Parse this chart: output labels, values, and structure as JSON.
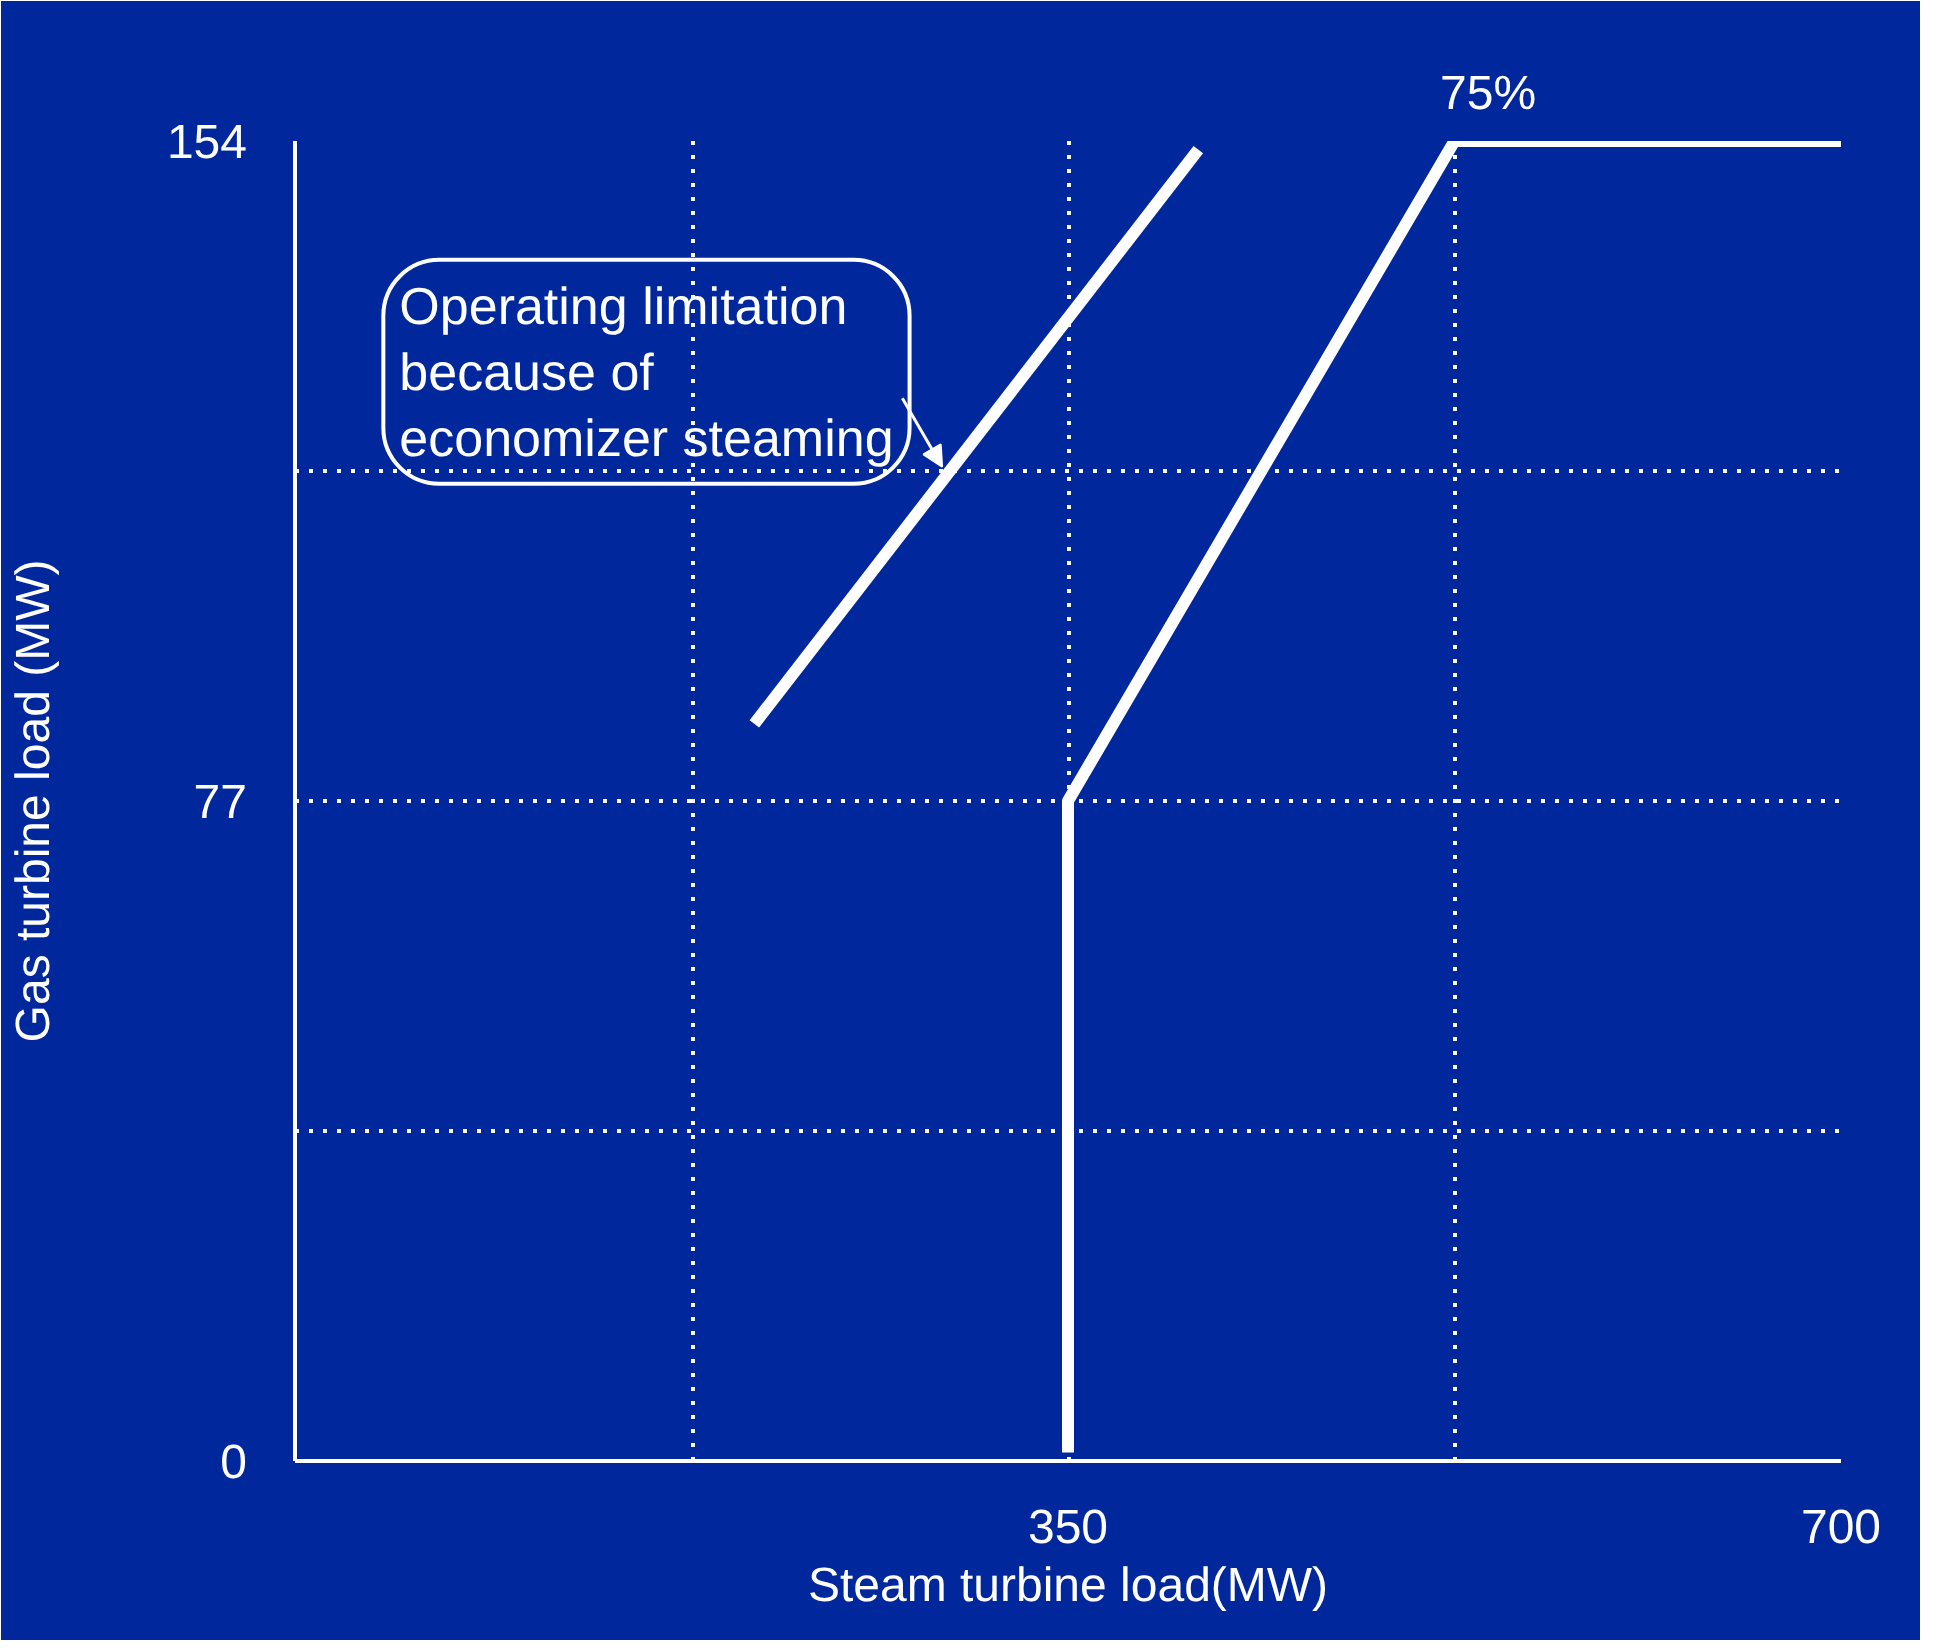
{
  "chart_data": {
    "type": "line",
    "xlabel": "Steam turbine load(MW)",
    "ylabel": "Gas turbine load (MW)",
    "xlim": [
      0,
      700
    ],
    "ylim": [
      0,
      154
    ],
    "xticks": [
      {
        "value": 180,
        "label": null
      },
      350,
      {
        "value": 525,
        "label": null
      },
      700
    ],
    "yticks": [
      0,
      {
        "value": 38.5,
        "label": null
      },
      77,
      {
        "value": 115.5,
        "label": null
      },
      154
    ],
    "grid": true,
    "line_style": "solid",
    "series": [
      {
        "color": "#ffffff",
        "x": [
          208,
          409
        ],
        "values": [
          86,
          153
        ]
      },
      {
        "color": "#ffffff",
        "x": [
          350,
          350,
          525,
          700
        ],
        "values": [
          1,
          77,
          154,
          154
        ]
      }
    ],
    "annotations": [
      {
        "text": "75%",
        "x": 525,
        "y": 154
      },
      {
        "text": "Operating limitation\nbecause of\neconomizer steaming",
        "x": 293,
        "y": 116
      }
    ]
  }
}
